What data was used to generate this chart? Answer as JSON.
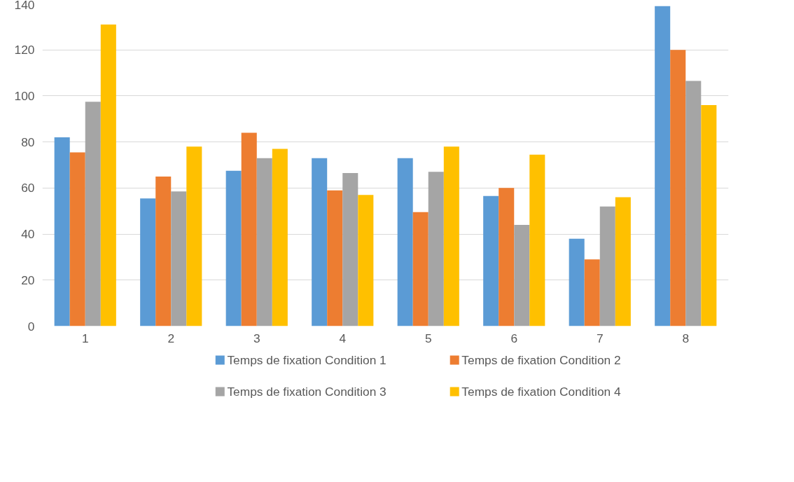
{
  "chart_data": {
    "type": "bar",
    "categories": [
      "1",
      "2",
      "3",
      "4",
      "5",
      "6",
      "7",
      "8"
    ],
    "series": [
      {
        "name": "Temps de fixation Condition 1",
        "color": "#5b9bd5",
        "values": [
          82,
          55.5,
          67.5,
          73,
          73,
          56.5,
          38,
          139
        ]
      },
      {
        "name": "Temps de fixation Condition 2",
        "color": "#ed7d31",
        "values": [
          75.5,
          65,
          84,
          59,
          49.5,
          60,
          29,
          120
        ]
      },
      {
        "name": "Temps de fixation Condition 3",
        "color": "#a5a5a5",
        "values": [
          97.5,
          58.5,
          73,
          66.5,
          67,
          44,
          52,
          106.5
        ]
      },
      {
        "name": "Temps de fixation Condition 4",
        "color": "#ffc000",
        "values": [
          131,
          78,
          77,
          57,
          78,
          74.5,
          56,
          96
        ]
      }
    ],
    "ylim": [
      0,
      140
    ],
    "yticks": [
      0,
      20,
      40,
      60,
      80,
      100,
      120,
      140
    ],
    "grid": "y",
    "legend": "bottom"
  }
}
